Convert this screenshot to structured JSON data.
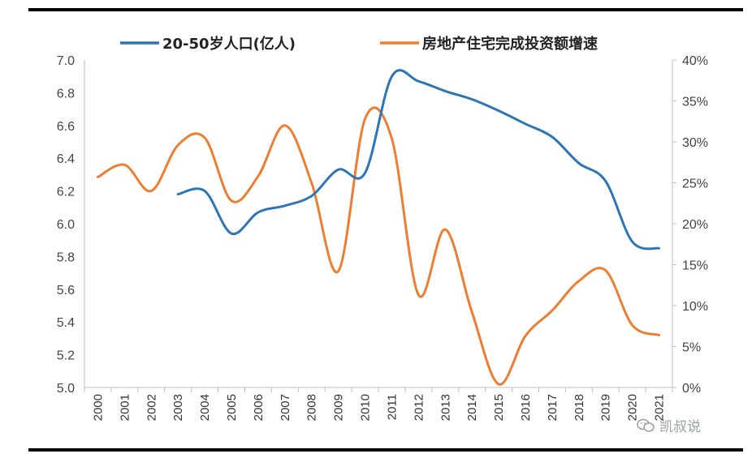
{
  "header": {
    "title_fragment": ""
  },
  "chart_data": {
    "type": "line",
    "title": "",
    "x": [
      "2000",
      "2001",
      "2002",
      "2003",
      "2004",
      "2005",
      "2006",
      "2007",
      "2008",
      "2009",
      "2010",
      "2011",
      "2012",
      "2013",
      "2014",
      "2015",
      "2016",
      "2017",
      "2018",
      "2019",
      "2020",
      "2021"
    ],
    "y_left": {
      "ticks": [
        "7.0",
        "6.8",
        "6.6",
        "6.4",
        "6.2",
        "6.0",
        "5.8",
        "5.6",
        "5.4",
        "5.2",
        "5.0"
      ],
      "ylim": [
        5.0,
        7.0
      ]
    },
    "y_right": {
      "ticks": [
        "40%",
        "35%",
        "30%",
        "25%",
        "20%",
        "15%",
        "10%",
        "5%",
        "0%"
      ],
      "ylim": [
        0,
        40
      ]
    },
    "legend": {
      "placement": "top"
    },
    "grid": false,
    "series": [
      {
        "name": "20-50岁人口(亿人)",
        "axis": "left",
        "color": "#2e75b6",
        "values": [
          null,
          null,
          null,
          6.18,
          6.2,
          5.94,
          6.07,
          6.11,
          6.17,
          6.33,
          6.31,
          6.9,
          6.87,
          6.81,
          6.76,
          6.69,
          6.61,
          6.53,
          6.37,
          6.26,
          5.89,
          5.85
        ]
      },
      {
        "name": "房地产住宅完成投资额增速",
        "axis": "right",
        "color": "#ed7d31",
        "values": [
          25.7,
          27.2,
          24.0,
          29.6,
          30.5,
          22.8,
          25.8,
          32.0,
          25.0,
          14.2,
          32.8,
          30.4,
          11.3,
          19.3,
          9.2,
          0.4,
          6.3,
          9.4,
          13.0,
          14.3,
          7.6,
          6.4
        ]
      }
    ]
  },
  "watermark": {
    "text": "凯叔说",
    "icon": "wechat-icon"
  }
}
